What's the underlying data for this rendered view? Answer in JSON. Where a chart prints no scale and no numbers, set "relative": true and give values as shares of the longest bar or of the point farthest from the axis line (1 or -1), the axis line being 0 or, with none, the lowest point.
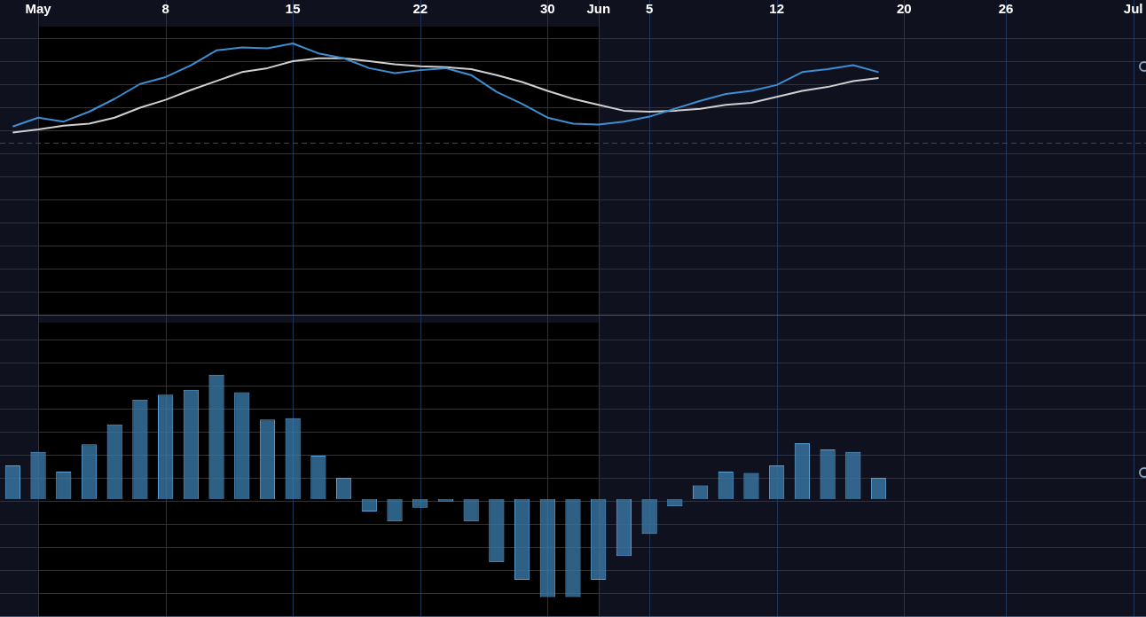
{
  "chart_data": [
    {
      "type": "line",
      "relative": true,
      "grid": true,
      "tick_labels": "x",
      "categories": [
        null,
        "May",
        null,
        null,
        null,
        null,
        "8",
        null,
        null,
        null,
        null,
        "15",
        null,
        null,
        null,
        null,
        "22",
        null,
        null,
        null,
        null,
        "30",
        null,
        "Jun",
        null,
        "5",
        null,
        null,
        null,
        null,
        "12",
        null,
        null,
        null,
        null,
        "20",
        null,
        null,
        null,
        "26",
        null,
        null,
        null,
        null,
        "Jul"
      ],
      "bands": [
        {
          "axis": "x",
          "from": "May",
          "to": "Jun",
          "color": "#000000"
        }
      ],
      "ref_lines": [
        {
          "axis": "y",
          "value": 0,
          "color": "#2a4a6e",
          "line_style": "dashed"
        }
      ],
      "series": [
        {
          "color": "#3d8fd1",
          "values": [
            0.16,
            0.25,
            0.21,
            0.31,
            0.44,
            0.59,
            0.66,
            0.78,
            0.93,
            0.96,
            0.95,
            1.0,
            0.9,
            0.85,
            0.75,
            0.7,
            0.73,
            0.75,
            0.68,
            0.51,
            0.39,
            0.25,
            0.19,
            0.18,
            0.21,
            0.26,
            0.34,
            0.42,
            0.49,
            0.52,
            0.58,
            0.71,
            0.74,
            0.78,
            0.71,
            null,
            null,
            null,
            null,
            null,
            null,
            null,
            null,
            null,
            null
          ]
        },
        {
          "color": "#d0d0d0",
          "values": [
            0.1,
            0.13,
            0.17,
            0.19,
            0.25,
            0.35,
            0.43,
            0.53,
            0.62,
            0.71,
            0.75,
            0.82,
            0.85,
            0.85,
            0.82,
            0.79,
            0.77,
            0.76,
            0.74,
            0.68,
            0.61,
            0.52,
            0.44,
            0.38,
            0.32,
            0.31,
            0.32,
            0.34,
            0.38,
            0.4,
            0.46,
            0.52,
            0.56,
            0.62,
            0.65,
            null,
            null,
            null,
            null,
            null,
            null,
            null,
            null,
            null,
            null
          ]
        }
      ]
    },
    {
      "type": "bar",
      "relative": true,
      "grid": true,
      "tick_labels": false,
      "categories": [
        null,
        "May",
        null,
        null,
        null,
        null,
        "8",
        null,
        null,
        null,
        null,
        "15",
        null,
        null,
        null,
        null,
        "22",
        null,
        null,
        null,
        null,
        "30",
        null,
        "Jun",
        null,
        "5",
        null,
        null,
        null,
        null,
        "12",
        null,
        null,
        null,
        null,
        "20",
        null,
        null,
        null,
        "26",
        null,
        null,
        null,
        null,
        "Jul"
      ],
      "bands": [
        {
          "axis": "x",
          "from": "May",
          "to": "Jun",
          "color": "#000000"
        }
      ],
      "color": "#3a78a6",
      "values": [
        0.27,
        0.38,
        0.22,
        0.44,
        0.6,
        0.8,
        0.84,
        0.88,
        1.0,
        0.86,
        0.64,
        0.65,
        0.35,
        0.17,
        -0.1,
        -0.18,
        -0.07,
        -0.02,
        -0.18,
        -0.51,
        -0.65,
        -0.79,
        -0.79,
        -0.65,
        -0.46,
        -0.28,
        -0.06,
        0.11,
        0.22,
        0.21,
        0.27,
        0.45,
        0.4,
        0.38,
        0.17,
        null,
        null,
        null,
        null,
        null,
        null,
        null,
        null,
        null,
        null
      ]
    }
  ]
}
